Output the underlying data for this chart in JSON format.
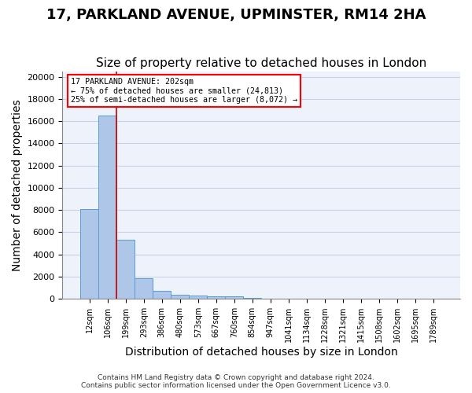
{
  "title": "17, PARKLAND AVENUE, UPMINSTER, RM14 2HA",
  "subtitle": "Size of property relative to detached houses in London",
  "xlabel": "Distribution of detached houses by size in London",
  "ylabel": "Number of detached properties",
  "bar_values": [
    8100,
    16500,
    5300,
    1850,
    700,
    350,
    270,
    200,
    200,
    100,
    50,
    20,
    10,
    5,
    3,
    2,
    1,
    1,
    1,
    0
  ],
  "x_labels": [
    "12sqm",
    "106sqm",
    "199sqm",
    "293sqm",
    "386sqm",
    "480sqm",
    "573sqm",
    "667sqm",
    "760sqm",
    "854sqm",
    "947sqm",
    "1041sqm",
    "1134sqm",
    "1228sqm",
    "1321sqm",
    "1415sqm",
    "1508sqm",
    "1602sqm",
    "1695sqm",
    "1789sqm"
  ],
  "bar_color": "#aec6e8",
  "bar_edge_color": "#5b9bd5",
  "annotation_line1": "17 PARKLAND AVENUE: 202sqm",
  "annotation_line2": "← 75% of detached houses are smaller (24,813)",
  "annotation_line3": "25% of semi-detached houses are larger (8,072) →",
  "annotation_box_color": "white",
  "annotation_box_edgecolor": "red",
  "vline_color": "#cc0000",
  "ylim": [
    0,
    20500
  ],
  "yticks": [
    0,
    2000,
    4000,
    6000,
    8000,
    10000,
    12000,
    14000,
    16000,
    18000,
    20000
  ],
  "title_fontsize": 13,
  "subtitle_fontsize": 11,
  "axis_label_fontsize": 10,
  "tick_fontsize": 8,
  "footer_line1": "Contains HM Land Registry data © Crown copyright and database right 2024.",
  "footer_line2": "Contains public sector information licensed under the Open Government Licence v3.0.",
  "background_color": "#eef2fa",
  "grid_color": "#c8d0e8"
}
